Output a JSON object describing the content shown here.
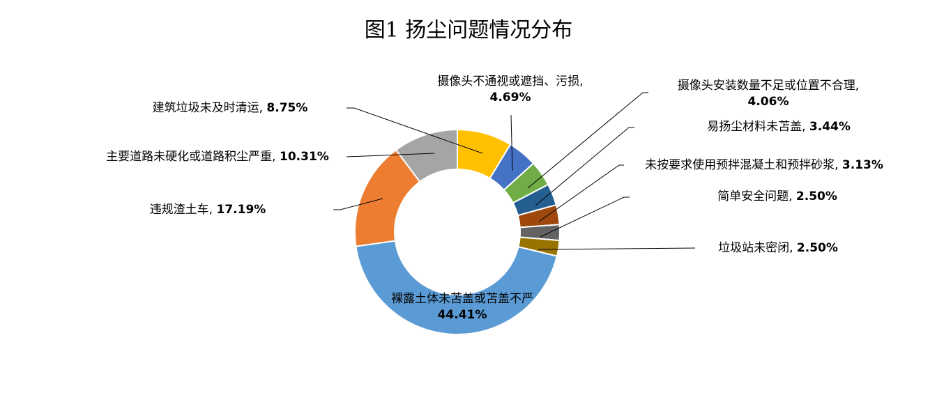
{
  "chart_data": {
    "type": "donut",
    "title": "图1  扬尘问题情况分布",
    "categories": [
      "建筑垃圾未及时清运,",
      "摄像头不通视或遮挡、污损,",
      "摄像头安装数量不足或位置不合理,",
      "易扬尘材料未苫盖,",
      "未按要求使用预拌混凝土和预拌砂浆,",
      "简单安全问题,",
      "垃圾站未密闭,",
      "裸露土体未苫盖或苫盖不严",
      "违规渣土车,",
      "主要道路未硬化或道路积尘严重,"
    ],
    "values": [
      8.75,
      4.69,
      4.06,
      3.44,
      3.13,
      2.5,
      2.5,
      44.41,
      17.19,
      10.31
    ],
    "value_labels": [
      "8.75%",
      "4.69%",
      "4.06%",
      "3.44%",
      "3.13%",
      "2.50%",
      "2.50%",
      "44.41%",
      "17.19%",
      "10.31%"
    ],
    "colors": [
      "#FFC000",
      "#4472C4",
      "#70AD47",
      "#255E91",
      "#9E480E",
      "#636363",
      "#997300",
      "#5B9BD5",
      "#ED7D31",
      "#A5A5A5"
    ]
  }
}
